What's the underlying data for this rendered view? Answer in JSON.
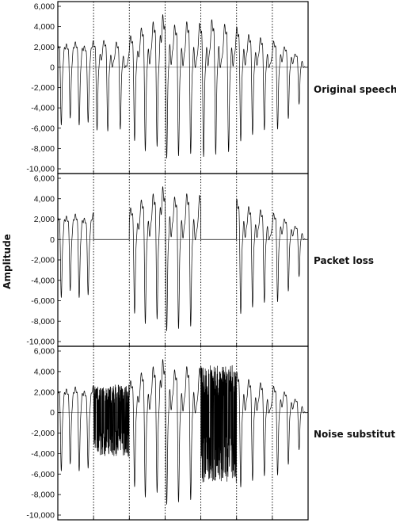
{
  "chart_data": {
    "type": "line",
    "ylabel": "Amplitude",
    "ylim": [
      -10000,
      6000
    ],
    "yticks": [
      6000,
      4000,
      2000,
      0,
      -2000,
      -4000,
      -6000,
      -8000,
      -10000
    ],
    "ytick_labels": [
      "6,000",
      "4,000",
      "2,000",
      "0",
      "-2,000",
      "-4,000",
      "-6,000",
      "-8,000",
      "-10,000"
    ],
    "packet_boundaries": 6,
    "packets": 7,
    "panels": [
      {
        "name": "Original speech",
        "lost_packets": [],
        "filler": "none"
      },
      {
        "name": "Packet loss",
        "lost_packets": [
          1,
          4
        ],
        "filler": "silence"
      },
      {
        "name": "Noise substitution",
        "lost_packets": [
          1,
          4
        ],
        "filler": "noise"
      }
    ],
    "cycles": [
      {
        "p": 0,
        "pos": 0.1,
        "min": -6000,
        "max": 2400
      },
      {
        "p": 0,
        "pos": 0.35,
        "min": -5300,
        "max": 2200
      },
      {
        "p": 0,
        "pos": 0.6,
        "min": -6000,
        "max": 2400
      },
      {
        "p": 0,
        "pos": 0.85,
        "min": -5700,
        "max": 2000
      },
      {
        "p": 1,
        "pos": 0.1,
        "min": -6500,
        "max": 2500
      },
      {
        "p": 1,
        "pos": 0.4,
        "min": -6600,
        "max": 2600
      },
      {
        "p": 1,
        "pos": 0.75,
        "min": -6400,
        "max": 2400
      },
      {
        "p": 2,
        "pos": 0.15,
        "min": -7600,
        "max": 3000
      },
      {
        "p": 2,
        "pos": 0.45,
        "min": -8700,
        "max": 3800
      },
      {
        "p": 2,
        "pos": 0.78,
        "min": -8300,
        "max": 4300
      },
      {
        "p": 3,
        "pos": 0.05,
        "min": -9500,
        "max": 4800
      },
      {
        "p": 3,
        "pos": 0.38,
        "min": -9200,
        "max": 4000
      },
      {
        "p": 3,
        "pos": 0.72,
        "min": -9000,
        "max": 4300
      },
      {
        "p": 4,
        "pos": 0.08,
        "min": -9300,
        "max": 4200
      },
      {
        "p": 4,
        "pos": 0.42,
        "min": -9100,
        "max": 4500
      },
      {
        "p": 4,
        "pos": 0.78,
        "min": -8800,
        "max": 4100
      },
      {
        "p": 5,
        "pos": 0.12,
        "min": -7700,
        "max": 3800
      },
      {
        "p": 5,
        "pos": 0.45,
        "min": -7000,
        "max": 3100
      },
      {
        "p": 5,
        "pos": 0.78,
        "min": -6500,
        "max": 2800
      },
      {
        "p": 6,
        "pos": 0.15,
        "min": -6400,
        "max": 2500
      },
      {
        "p": 6,
        "pos": 0.45,
        "min": -5300,
        "max": 2000
      },
      {
        "p": 6,
        "pos": 0.75,
        "min": -3800,
        "max": 1300
      }
    ],
    "noise_amplitude": [
      {
        "p": 1,
        "min": -4300,
        "max": 2700
      },
      {
        "p": 4,
        "min": -6800,
        "max": 4600
      }
    ]
  }
}
